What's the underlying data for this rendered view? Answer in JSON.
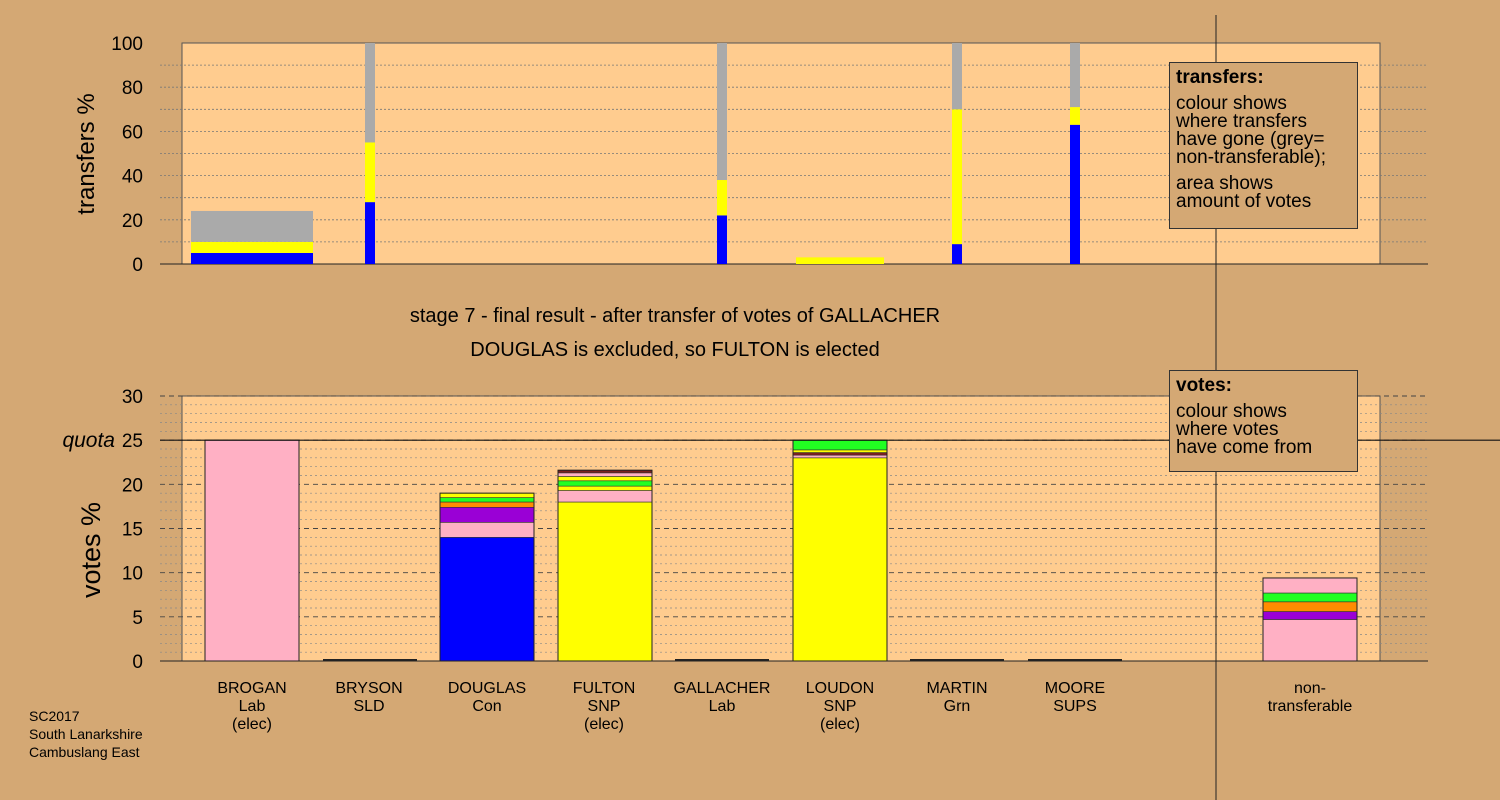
{
  "colors": {
    "background": "#D4A874",
    "plot_bg": "#FFCC8F",
    "grey": "#AAAAAA",
    "yellow": "#FFFF00",
    "blue": "#0000FF",
    "pink": "#FFB0C4",
    "purple": "#9A00D6",
    "orange": "#FF8C00",
    "green": "#22FF22",
    "darkred": "#7A1F1F"
  },
  "stage": {
    "title": "stage 7 - final result - after transfer of votes of GALLACHER",
    "subtitle": "DOUGLAS is excluded, so FULTON is elected"
  },
  "legend_transfers": {
    "heading": "transfers:",
    "line1": "colour shows\nwhere transfers\nhave gone (grey=\nnon-transferable);",
    "line2": "area shows\namount of votes"
  },
  "legend_votes": {
    "heading": "votes:",
    "line1": "colour shows\nwhere votes\nhave come from"
  },
  "candidates": [
    {
      "name": "BROGAN",
      "party": "Lab",
      "note": "(elec)"
    },
    {
      "name": "BRYSON",
      "party": "SLD",
      "note": ""
    },
    {
      "name": "DOUGLAS",
      "party": "Con",
      "note": ""
    },
    {
      "name": "FULTON",
      "party": "SNP",
      "note": "(elec)"
    },
    {
      "name": "GALLACHER",
      "party": "Lab",
      "note": ""
    },
    {
      "name": "LOUDON",
      "party": "SNP",
      "note": "(elec)"
    },
    {
      "name": "MARTIN",
      "party": "Grn",
      "note": ""
    },
    {
      "name": "MOORE",
      "party": "SUPS",
      "note": ""
    }
  ],
  "nontransferable": {
    "line1": "non-",
    "line2": "transferable"
  },
  "constituency": {
    "line1": "SC2017",
    "line2": "South Lanarkshire",
    "line3": "Cambuslang East"
  },
  "chart_data": [
    {
      "type": "bar",
      "ylabel": "transfers %",
      "ylim": [
        0,
        100
      ],
      "yticks": [
        0,
        20,
        40,
        60,
        80,
        100
      ],
      "grid": true,
      "bars": [
        {
          "candidate": "BROGAN",
          "width_share": 1.0,
          "segments": [
            {
              "color": "blue",
              "from": 0,
              "to": 5
            },
            {
              "color": "yellow",
              "from": 5,
              "to": 10
            },
            {
              "color": "grey",
              "from": 10,
              "to": 24
            }
          ]
        },
        {
          "candidate": "BRYSON",
          "width_share": 0.08,
          "segments": [
            {
              "color": "blue",
              "from": 0,
              "to": 28
            },
            {
              "color": "yellow",
              "from": 28,
              "to": 55
            },
            {
              "color": "grey",
              "from": 55,
              "to": 100
            }
          ]
        },
        {
          "candidate": "GALLACHER",
          "width_share": 0.08,
          "segments": [
            {
              "color": "blue",
              "from": 0,
              "to": 22
            },
            {
              "color": "yellow",
              "from": 22,
              "to": 38
            },
            {
              "color": "grey",
              "from": 38,
              "to": 100
            }
          ]
        },
        {
          "candidate": "LOUDON",
          "width_share": 0.75,
          "segments": [
            {
              "color": "yellow",
              "from": 0,
              "to": 3
            }
          ]
        },
        {
          "candidate": "MARTIN",
          "width_share": 0.08,
          "segments": [
            {
              "color": "blue",
              "from": 0,
              "to": 9
            },
            {
              "color": "yellow",
              "from": 9,
              "to": 70
            },
            {
              "color": "grey",
              "from": 70,
              "to": 100
            }
          ]
        },
        {
          "candidate": "MOORE",
          "width_share": 0.08,
          "segments": [
            {
              "color": "blue",
              "from": 0,
              "to": 63
            },
            {
              "color": "yellow",
              "from": 63,
              "to": 71
            },
            {
              "color": "grey",
              "from": 71,
              "to": 100
            }
          ]
        }
      ]
    },
    {
      "type": "bar",
      "ylabel": "votes %",
      "ylim": [
        0,
        30
      ],
      "yticks": [
        0,
        5,
        10,
        15,
        20,
        25,
        30
      ],
      "quota_label": "quota",
      "quota": 25,
      "grid": true,
      "bars": [
        {
          "candidate": "BROGAN",
          "segments": [
            {
              "color": "pink",
              "from": 0,
              "to": 25
            }
          ]
        },
        {
          "candidate": "BRYSON",
          "segments": []
        },
        {
          "candidate": "DOUGLAS",
          "segments": [
            {
              "color": "blue",
              "from": 0,
              "to": 14
            },
            {
              "color": "pink",
              "from": 14,
              "to": 15.7
            },
            {
              "color": "purple",
              "from": 15.7,
              "to": 17.4
            },
            {
              "color": "orange",
              "from": 17.4,
              "to": 18
            },
            {
              "color": "green",
              "from": 18,
              "to": 18.5
            },
            {
              "color": "yellow",
              "from": 18.5,
              "to": 19
            }
          ]
        },
        {
          "candidate": "FULTON",
          "segments": [
            {
              "color": "yellow",
              "from": 0,
              "to": 18
            },
            {
              "color": "pink",
              "from": 18,
              "to": 19.3
            },
            {
              "color": "yellow",
              "from": 19.3,
              "to": 19.8
            },
            {
              "color": "green",
              "from": 19.8,
              "to": 20.4
            },
            {
              "color": "yellow",
              "from": 20.4,
              "to": 20.9
            },
            {
              "color": "pink",
              "from": 20.9,
              "to": 21.3
            },
            {
              "color": "darkred",
              "from": 21.3,
              "to": 21.6
            }
          ]
        },
        {
          "candidate": "GALLACHER",
          "segments": []
        },
        {
          "candidate": "LOUDON",
          "segments": [
            {
              "color": "yellow",
              "from": 0,
              "to": 23
            },
            {
              "color": "pink",
              "from": 23,
              "to": 23.3
            },
            {
              "color": "darkred",
              "from": 23.3,
              "to": 23.6
            },
            {
              "color": "yellow",
              "from": 23.6,
              "to": 23.9
            },
            {
              "color": "green",
              "from": 23.9,
              "to": 25
            }
          ]
        },
        {
          "candidate": "MARTIN",
          "segments": []
        },
        {
          "candidate": "MOORE",
          "segments": []
        },
        {
          "candidate": "non-transferable",
          "segments": [
            {
              "color": "pink",
              "from": 0,
              "to": 4.7
            },
            {
              "color": "purple",
              "from": 4.7,
              "to": 5.6
            },
            {
              "color": "orange",
              "from": 5.6,
              "to": 6.7
            },
            {
              "color": "green",
              "from": 6.7,
              "to": 7.7
            },
            {
              "color": "pink",
              "from": 7.7,
              "to": 9.4
            }
          ]
        }
      ]
    }
  ]
}
